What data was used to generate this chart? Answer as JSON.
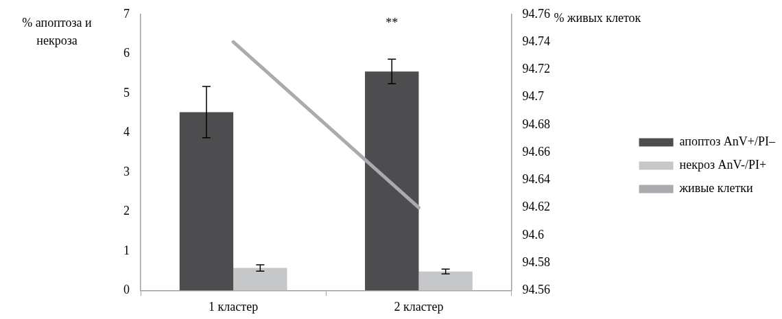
{
  "chart_data": {
    "type": "bar",
    "ylabel": "% апоптоза и некроза",
    "y2label": "% живых клеток",
    "categories": [
      "1 кластер",
      "2 кластер"
    ],
    "series": [
      {
        "name": "апоптоз AnV+/PI–",
        "color": "#4d4d4f",
        "values": [
          4.52,
          5.55
        ],
        "errors": [
          0.65,
          0.31
        ]
      },
      {
        "name": "некроз AnV-/PI+",
        "color": "#c6c7c9",
        "values": [
          0.57,
          0.48
        ],
        "errors": [
          0.08,
          0.06
        ]
      },
      {
        "name": "живые клетки",
        "type": "line",
        "axis": "y2",
        "color": "#a9abae",
        "values": [
          94.74,
          94.62
        ],
        "marker": "none"
      }
    ],
    "ylim": [
      0,
      7
    ],
    "yticks": [
      0,
      1,
      2,
      3,
      4,
      5,
      6,
      7
    ],
    "y2lim": [
      94.56,
      94.76
    ],
    "y2ticks": [
      94.56,
      94.58,
      94.6,
      94.62,
      94.64,
      94.66,
      94.68,
      94.7,
      94.72,
      94.74,
      94.76
    ],
    "annotations": [
      "**"
    ],
    "grid": false,
    "legend": "right"
  }
}
